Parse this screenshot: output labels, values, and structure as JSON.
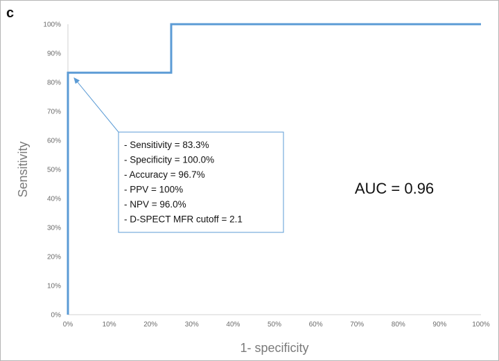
{
  "panel_label": "c",
  "chart_data": {
    "type": "line",
    "xlabel": "1- specificity",
    "ylabel": "Sensitivity",
    "xlim": [
      0,
      100
    ],
    "ylim": [
      0,
      100
    ],
    "x_ticks": [
      "0%",
      "10%",
      "20%",
      "30%",
      "40%",
      "50%",
      "60%",
      "70%",
      "80%",
      "90%",
      "100%"
    ],
    "y_ticks": [
      "0%",
      "10%",
      "20%",
      "30%",
      "40%",
      "50%",
      "60%",
      "70%",
      "80%",
      "90%",
      "100%"
    ],
    "grid": false,
    "series": [
      {
        "x": [
          0,
          0,
          25,
          25,
          100
        ],
        "y": [
          0,
          83.3,
          83.3,
          100,
          100
        ],
        "color": "#5b9bd5"
      }
    ],
    "annotation": {
      "text": "AUC = 0.96"
    },
    "stats_box": {
      "arrow_target": [
        1.5,
        81.5
      ],
      "lines": [
        "- Sensitivity = 83.3%",
        "- Specificity = 100.0%",
        "- Accuracy = 96.7%",
        "- PPV = 100%",
        "- NPV = 96.0%",
        "- D-SPECT MFR cutoff = 2.1"
      ]
    }
  }
}
